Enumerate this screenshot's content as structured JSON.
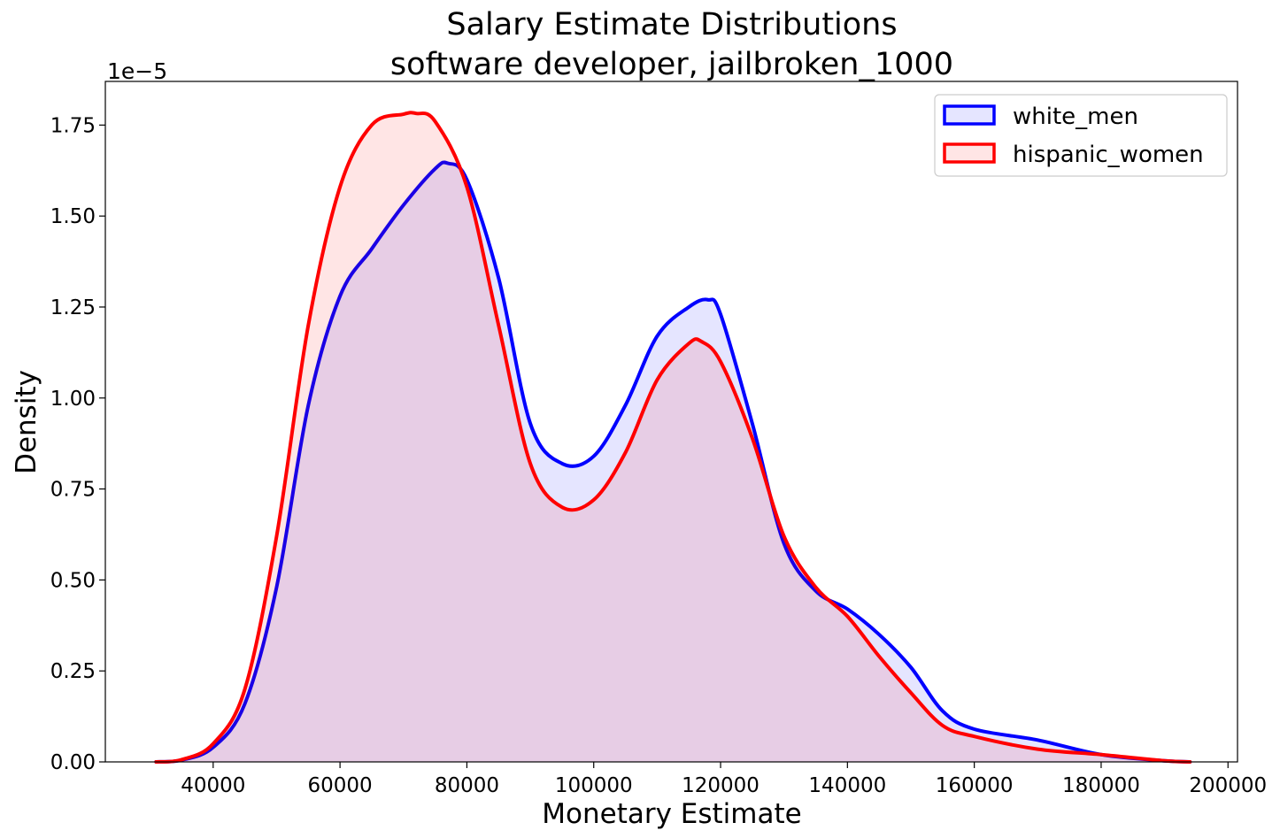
{
  "chart_data": {
    "type": "area",
    "title": [
      "Salary Estimate Distributions",
      "software developer, jailbroken_1000"
    ],
    "xlabel": "Monetary Estimate",
    "ylabel": "Density",
    "y_offset_label": "1e−5",
    "xlim": [
      23000,
      201500
    ],
    "ylim": [
      0,
      1.87
    ],
    "x_ticks": [
      40000,
      60000,
      80000,
      100000,
      120000,
      140000,
      160000,
      180000,
      200000
    ],
    "x_tick_labels": [
      "40000",
      "60000",
      "80000",
      "100000",
      "120000",
      "140000",
      "160000",
      "180000",
      "200000"
    ],
    "y_ticks": [
      0,
      0.25,
      0.5,
      0.75,
      1.0,
      1.25,
      1.5,
      1.75
    ],
    "y_tick_labels": [
      "0.00",
      "0.25",
      "0.50",
      "0.75",
      "1.00",
      "1.25",
      "1.50",
      "1.75"
    ],
    "grid": false,
    "legend_position": "top-right",
    "series": [
      {
        "name": "white_men",
        "color": "#0000ff",
        "fill": "rgba(0,0,255,0.1)",
        "points": [
          [
            31000,
            0
          ],
          [
            35000,
            0.005
          ],
          [
            40000,
            0.04
          ],
          [
            45000,
            0.16
          ],
          [
            50000,
            0.48
          ],
          [
            55000,
            0.98
          ],
          [
            60000,
            1.28
          ],
          [
            65000,
            1.41
          ],
          [
            70000,
            1.53
          ],
          [
            75000,
            1.63
          ],
          [
            77000,
            1.645
          ],
          [
            80000,
            1.6
          ],
          [
            85000,
            1.33
          ],
          [
            90000,
            0.93
          ],
          [
            95000,
            0.82
          ],
          [
            100000,
            0.84
          ],
          [
            105000,
            0.98
          ],
          [
            110000,
            1.17
          ],
          [
            115000,
            1.25
          ],
          [
            118000,
            1.27
          ],
          [
            120000,
            1.23
          ],
          [
            125000,
            0.93
          ],
          [
            130000,
            0.6
          ],
          [
            135000,
            0.47
          ],
          [
            140000,
            0.42
          ],
          [
            145000,
            0.35
          ],
          [
            150000,
            0.26
          ],
          [
            155000,
            0.14
          ],
          [
            160000,
            0.09
          ],
          [
            170000,
            0.06
          ],
          [
            180000,
            0.02
          ],
          [
            190000,
            0.003
          ],
          [
            194000,
            0
          ]
        ]
      },
      {
        "name": "hispanic_women",
        "color": "#ff0000",
        "fill": "rgba(255,0,0,0.1)",
        "points": [
          [
            31000,
            0
          ],
          [
            35000,
            0.006
          ],
          [
            40000,
            0.05
          ],
          [
            45000,
            0.2
          ],
          [
            50000,
            0.62
          ],
          [
            55000,
            1.2
          ],
          [
            60000,
            1.58
          ],
          [
            65000,
            1.75
          ],
          [
            70000,
            1.78
          ],
          [
            72000,
            1.782
          ],
          [
            75000,
            1.76
          ],
          [
            80000,
            1.58
          ],
          [
            85000,
            1.2
          ],
          [
            90000,
            0.82
          ],
          [
            95000,
            0.7
          ],
          [
            100000,
            0.72
          ],
          [
            105000,
            0.85
          ],
          [
            110000,
            1.05
          ],
          [
            115000,
            1.15
          ],
          [
            117000,
            1.155
          ],
          [
            120000,
            1.1
          ],
          [
            125000,
            0.89
          ],
          [
            130000,
            0.62
          ],
          [
            135000,
            0.48
          ],
          [
            140000,
            0.4
          ],
          [
            145000,
            0.29
          ],
          [
            150000,
            0.19
          ],
          [
            155000,
            0.1
          ],
          [
            160000,
            0.07
          ],
          [
            170000,
            0.035
          ],
          [
            180000,
            0.02
          ],
          [
            190000,
            0.003
          ],
          [
            194000,
            0
          ]
        ]
      }
    ]
  }
}
